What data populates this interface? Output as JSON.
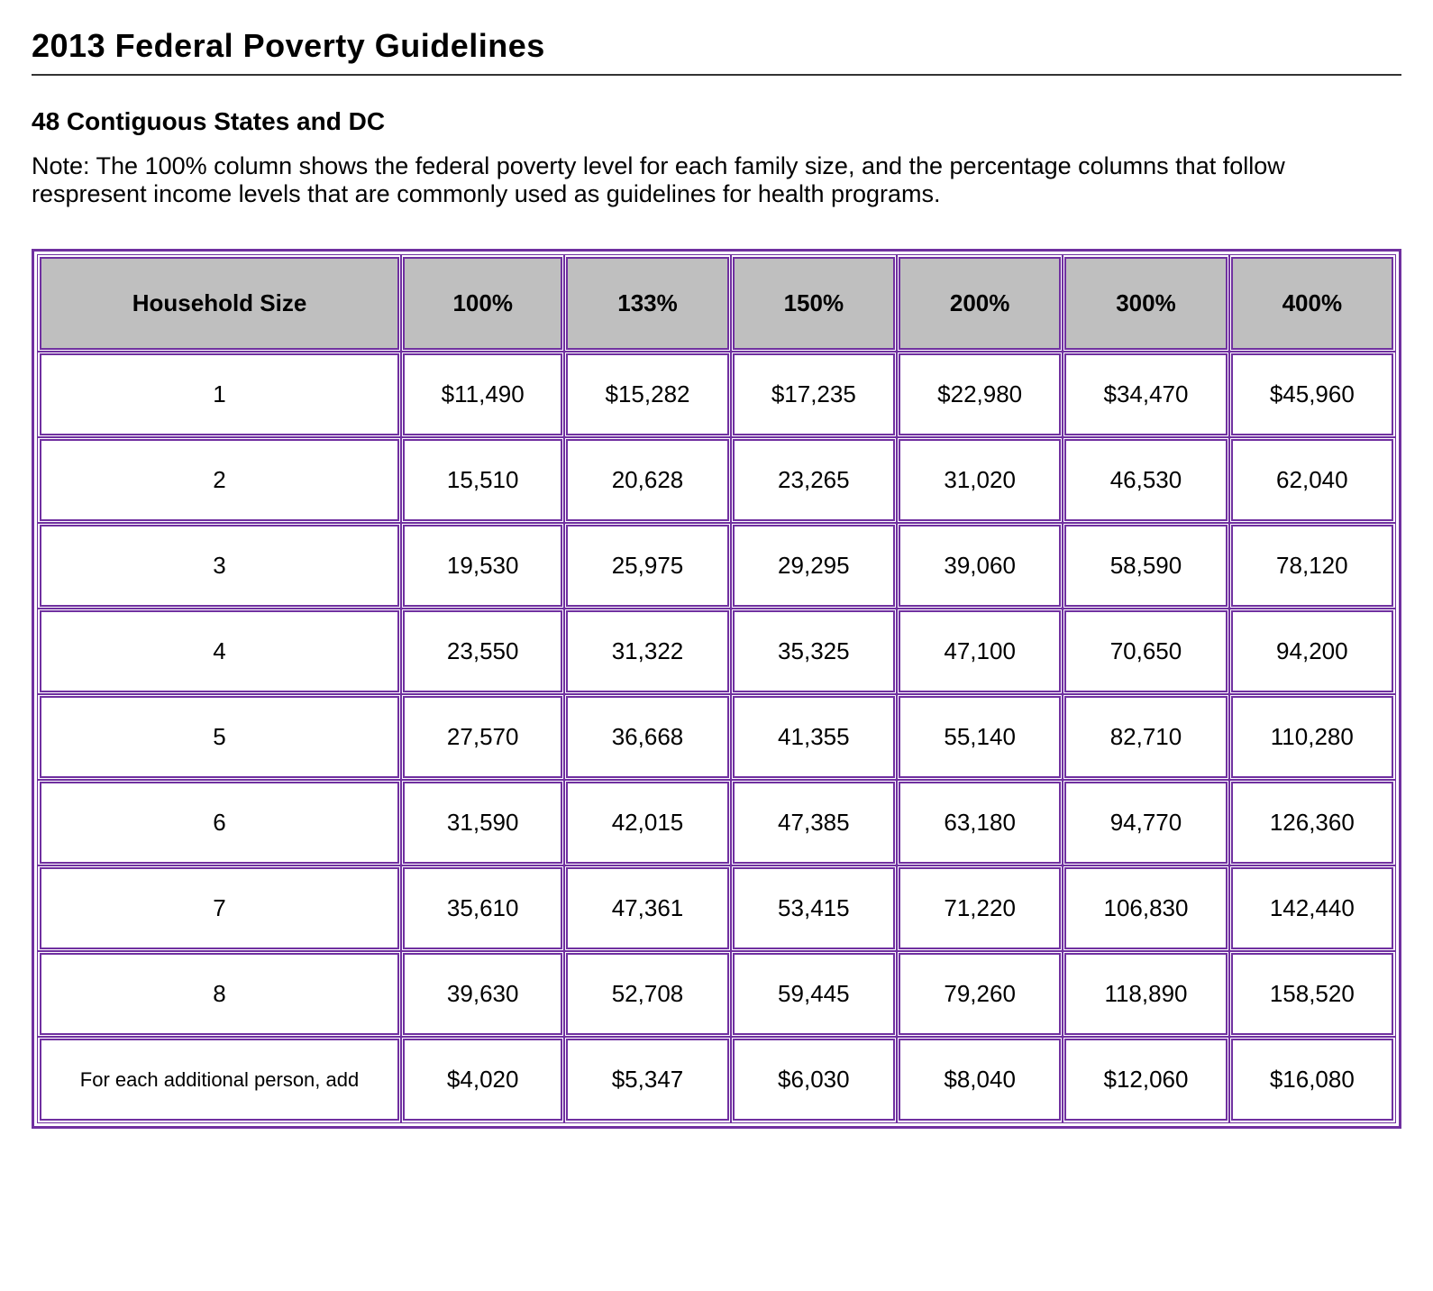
{
  "title": "2013 Federal Poverty Guidelines",
  "subtitle": "48 Contiguous States and DC",
  "note": "Note: The 100% column shows the federal poverty level for each family size, and the percentage columns that follow respresent income levels that are commonly used as guidelines for health programs.",
  "table": {
    "type": "table",
    "border_color": "#7030a0",
    "header_bg": "#bfbfbf",
    "cell_bg": "#ffffff",
    "text_color": "#000000",
    "font_family": "Verdana",
    "header_fontsize": 26,
    "cell_fontsize": 26,
    "addl_row_fontsize": 22,
    "columns": [
      "Household Size",
      "100%",
      "133%",
      "150%",
      "200%",
      "300%",
      "400%"
    ],
    "rows": [
      [
        "1",
        "$11,490",
        "$15,282",
        "$17,235",
        "$22,980",
        "$34,470",
        "$45,960"
      ],
      [
        "2",
        "15,510",
        "20,628",
        "23,265",
        "31,020",
        "46,530",
        "62,040"
      ],
      [
        "3",
        "19,530",
        "25,975",
        "29,295",
        "39,060",
        "58,590",
        "78,120"
      ],
      [
        "4",
        "23,550",
        "31,322",
        "35,325",
        "47,100",
        "70,650",
        "94,200"
      ],
      [
        "5",
        "27,570",
        "36,668",
        "41,355",
        "55,140",
        "82,710",
        "110,280"
      ],
      [
        "6",
        "31,590",
        "42,015",
        "47,385",
        "63,180",
        "94,770",
        "126,360"
      ],
      [
        "7",
        "35,610",
        "47,361",
        "53,415",
        "71,220",
        "106,830",
        "142,440"
      ],
      [
        "8",
        "39,630",
        "52,708",
        "59,445",
        "79,260",
        "118,890",
        "158,520"
      ]
    ],
    "additional_row": [
      "For each additional person, add",
      "$4,020",
      "$5,347",
      "$6,030",
      "$8,040",
      "$12,060",
      "$16,080"
    ]
  }
}
